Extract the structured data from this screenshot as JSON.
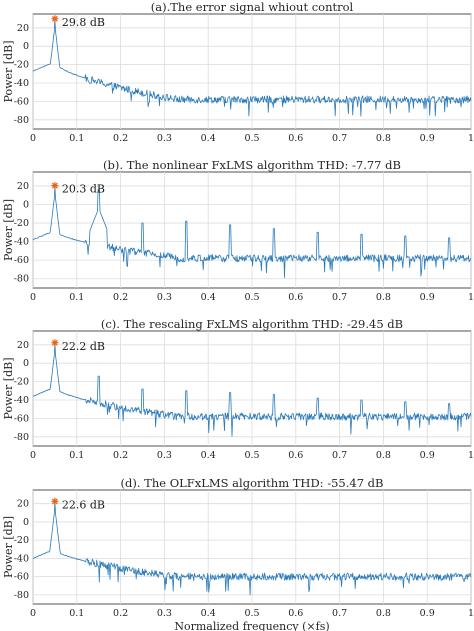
{
  "chart_data": [
    {
      "type": "line",
      "title": "(a).The error signal whiout control",
      "ylabel": "Power [dB]",
      "xlabel": "",
      "xlim": [
        0,
        1
      ],
      "ylim": [
        -90,
        35
      ],
      "xticks": [
        0,
        0.1,
        0.2,
        0.3,
        0.4,
        0.5,
        0.6,
        0.7,
        0.8,
        0.9,
        1
      ],
      "yticks": [
        20,
        0,
        -20,
        -40,
        -60,
        -80
      ],
      "grid": true,
      "series_color": "#2b7bba",
      "marker_color": "#e8641b",
      "fundamental": {
        "x": 0.05,
        "y": 29.8,
        "label": "29.8 dB"
      },
      "harmonics": [],
      "floor": {
        "near": -27,
        "far": -58,
        "noise": 4,
        "knee": 0.15
      }
    },
    {
      "type": "line",
      "title": "(b).  The nonlinear FxLMS algorithm  THD: -7.77 dB",
      "ylabel": "Power [dB]",
      "xlabel": "",
      "xlim": [
        0,
        1
      ],
      "ylim": [
        -90,
        35
      ],
      "xticks": [
        0,
        0.1,
        0.2,
        0.3,
        0.4,
        0.5,
        0.6,
        0.7,
        0.8,
        0.9,
        1
      ],
      "yticks": [
        20,
        0,
        -20,
        -40,
        -60,
        -80
      ],
      "grid": true,
      "series_color": "#2b7bba",
      "marker_color": "#e8641b",
      "fundamental": {
        "x": 0.05,
        "y": 20.3,
        "label": "20.3 dB"
      },
      "harmonics": [
        {
          "x": 0.15,
          "y": 16
        },
        {
          "x": 0.25,
          "y": -20
        },
        {
          "x": 0.35,
          "y": -18
        },
        {
          "x": 0.45,
          "y": -22
        },
        {
          "x": 0.55,
          "y": -26
        },
        {
          "x": 0.65,
          "y": -30
        },
        {
          "x": 0.75,
          "y": -32
        },
        {
          "x": 0.85,
          "y": -34
        },
        {
          "x": 0.95,
          "y": -36
        }
      ],
      "floor": {
        "near": -38,
        "far": -58,
        "noise": 4,
        "knee": 0.16
      }
    },
    {
      "type": "line",
      "title": "(c).  The rescaling FxLMS algorithm  THD: -29.45 dB",
      "ylabel": "Power [dB]",
      "xlabel": "",
      "xlim": [
        0,
        1
      ],
      "ylim": [
        -90,
        35
      ],
      "xticks": [
        0,
        0.1,
        0.2,
        0.3,
        0.4,
        0.5,
        0.6,
        0.7,
        0.8,
        0.9,
        1
      ],
      "yticks": [
        20,
        0,
        -20,
        -40,
        -60,
        -80
      ],
      "grid": true,
      "series_color": "#2b7bba",
      "marker_color": "#e8641b",
      "fundamental": {
        "x": 0.05,
        "y": 22.2,
        "label": "22.2 dB"
      },
      "harmonics": [
        {
          "x": 0.15,
          "y": -14
        },
        {
          "x": 0.25,
          "y": -28
        },
        {
          "x": 0.35,
          "y": -30
        },
        {
          "x": 0.45,
          "y": -32
        },
        {
          "x": 0.55,
          "y": -34
        },
        {
          "x": 0.65,
          "y": -38
        },
        {
          "x": 0.75,
          "y": -40
        },
        {
          "x": 0.85,
          "y": -42
        },
        {
          "x": 0.95,
          "y": -44
        }
      ],
      "floor": {
        "near": -36,
        "far": -58,
        "noise": 4,
        "knee": 0.15
      }
    },
    {
      "type": "line",
      "title": "(d).  The OLFxLMS algorithm  THD: -55.47 dB",
      "ylabel": "Power [dB]",
      "xlabel": "Normalized frequency (×fs)",
      "xlim": [
        0,
        1
      ],
      "ylim": [
        -90,
        35
      ],
      "xticks": [
        0,
        0.1,
        0.2,
        0.3,
        0.4,
        0.5,
        0.6,
        0.7,
        0.8,
        0.9,
        1
      ],
      "yticks": [
        20,
        0,
        -20,
        -40,
        -60,
        -80
      ],
      "grid": true,
      "series_color": "#2b7bba",
      "marker_color": "#e8641b",
      "fundamental": {
        "x": 0.05,
        "y": 22.6,
        "label": "22.6 dB"
      },
      "harmonics": [],
      "floor": {
        "near": -40,
        "far": -60,
        "noise": 4,
        "knee": 0.15
      }
    }
  ]
}
